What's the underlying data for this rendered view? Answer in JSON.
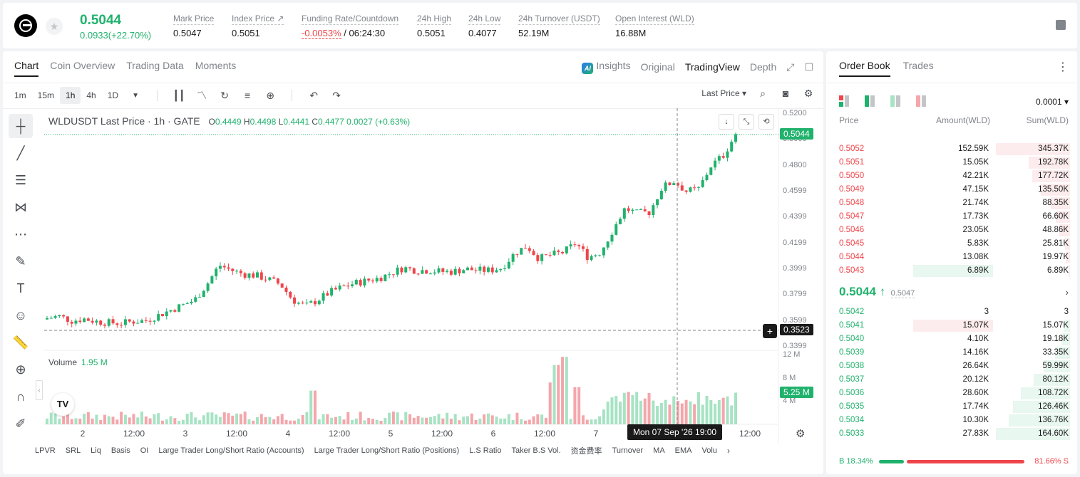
{
  "header": {
    "last_price": "0.5044",
    "change": "0.0933(+22.70%)",
    "stats": [
      {
        "label": "Mark Price",
        "value": "0.5047",
        "x": 239
      },
      {
        "label": "Index Price ↗",
        "value": "0.5051",
        "x": 321
      },
      {
        "label": "Funding Rate/Countdown",
        "value_red": "-0.0053%",
        "value": " / 06:24:30",
        "x": 419
      },
      {
        "label": "24h High",
        "value": "0.5051",
        "x": 581
      },
      {
        "label": "24h Low",
        "value": "0.4077",
        "x": 653
      },
      {
        "label": "24h Turnover (USDT)",
        "value": "52.19M",
        "x": 723
      },
      {
        "label": "Open Interest (WLD)",
        "value": "16.88M",
        "x": 859
      }
    ]
  },
  "chart_tabs": [
    "Chart",
    "Coin Overview",
    "Trading Data",
    "Moments"
  ],
  "view_tabs": {
    "ai": "AI",
    "insights": "Insights",
    "original": "Original",
    "tradingview": "TradingView",
    "depth": "Depth"
  },
  "timeframes": [
    "1m",
    "15m",
    "1h",
    "4h",
    "1D"
  ],
  "toolbar_right": {
    "price_type": "Last Price"
  },
  "legend": {
    "title": "WLDUSDT Last Price · 1h · GATE",
    "o": "0.4449",
    "h": "0.4498",
    "l": "0.4441",
    "c": "0.4477",
    "chg": "0.0027 (+0.63%)"
  },
  "volume_legend": {
    "label": "Volume",
    "value": "1.95 M"
  },
  "y_axis_labels": [
    "0.5200",
    "0.5000",
    "0.4800",
    "0.4599",
    "0.4399",
    "0.4199",
    "0.3999",
    "0.3799",
    "0.3599",
    "0.3399"
  ],
  "vol_axis_labels": [
    "12 M",
    "8 M",
    "4 M"
  ],
  "price_tag": "0.5044",
  "cursor_tag": "0.3523",
  "vol_tag": "5.25 M",
  "x_axis_labels": [
    "2",
    "12:00",
    "3",
    "12:00",
    "4",
    "12:00",
    "5",
    "12:00",
    "6",
    "12:00",
    "7",
    "12:00"
  ],
  "time_cursor": "Mon 07 Sep '26   19:00",
  "tv_logo": "TV",
  "indicators": [
    "LPVR",
    "SRL",
    "Liq",
    "Basis",
    "OI",
    "Large Trader Long/Short Ratio (Accounts)",
    "Large Trader Long/Short Ratio (Positions)",
    "L.S Ratio",
    "Taker B.S Vol.",
    "资金费率",
    "Turnover",
    "MA",
    "EMA",
    "Volu"
  ],
  "orderbook": {
    "tabs": [
      "Order Book",
      "Trades"
    ],
    "precision": "0.0001 ▾",
    "headers": {
      "price": "Price",
      "amount": "Amount(WLD)",
      "sum": "Sum(WLD)"
    },
    "asks": [
      {
        "price": "0.5052",
        "amount": "152.59K",
        "sum": "345.37K",
        "depth": 1.0
      },
      {
        "price": "0.5051",
        "amount": "15.05K",
        "sum": "192.78K",
        "depth": 0.56
      },
      {
        "price": "0.5050",
        "amount": "42.21K",
        "sum": "177.72K",
        "depth": 0.51
      },
      {
        "price": "0.5049",
        "amount": "47.15K",
        "sum": "135.50K",
        "depth": 0.39
      },
      {
        "price": "0.5048",
        "amount": "21.74K",
        "sum": "88.35K",
        "depth": 0.26
      },
      {
        "price": "0.5047",
        "amount": "17.73K",
        "sum": "66.60K",
        "depth": 0.19
      },
      {
        "price": "0.5046",
        "amount": "23.05K",
        "sum": "48.86K",
        "depth": 0.14
      },
      {
        "price": "0.5045",
        "amount": "5.83K",
        "sum": "25.81K",
        "depth": 0.07
      },
      {
        "price": "0.5044",
        "amount": "13.08K",
        "sum": "19.97K",
        "depth": 0.06
      },
      {
        "price": "0.5043",
        "amount": "6.89K",
        "sum": "6.89K",
        "depth": 0.02,
        "hl": true
      }
    ],
    "mid_price": "0.5044 ↑",
    "mid_mark": "0.5047",
    "bids": [
      {
        "price": "0.5042",
        "amount": "3",
        "sum": "3",
        "depth": 0.0
      },
      {
        "price": "0.5041",
        "amount": "15.07K",
        "sum": "15.07K",
        "depth": 0.09,
        "hl": true
      },
      {
        "price": "0.5040",
        "amount": "4.10K",
        "sum": "19.18K",
        "depth": 0.12
      },
      {
        "price": "0.5039",
        "amount": "14.16K",
        "sum": "33.35K",
        "depth": 0.2
      },
      {
        "price": "0.5038",
        "amount": "26.64K",
        "sum": "59.99K",
        "depth": 0.36
      },
      {
        "price": "0.5037",
        "amount": "20.12K",
        "sum": "80.12K",
        "depth": 0.49
      },
      {
        "price": "0.5036",
        "amount": "28.60K",
        "sum": "108.72K",
        "depth": 0.66
      },
      {
        "price": "0.5035",
        "amount": "17.74K",
        "sum": "126.46K",
        "depth": 0.77
      },
      {
        "price": "0.5034",
        "amount": "10.30K",
        "sum": "136.76K",
        "depth": 0.83
      },
      {
        "price": "0.5033",
        "amount": "27.83K",
        "sum": "164.60K",
        "depth": 1.0
      }
    ],
    "ratio": {
      "buy_label": "B 18.34%",
      "sell_label": "81.66% S",
      "buy": 18.34,
      "sell": 81.66
    }
  },
  "colors": {
    "up": "#20b26c",
    "down": "#ef454a",
    "up_vol": "#a6e3c3",
    "down_vol": "#f4a6ab"
  },
  "chart_data": {
    "type": "candlestick",
    "title": "WLDUSDT Last Price · 1h · GATE",
    "ylim": [
      0.3399,
      0.52
    ],
    "volume_ylim": [
      0,
      12
    ],
    "volume_unit": "M",
    "x_ticks": [
      "2",
      "12:00",
      "3",
      "12:00",
      "4",
      "12:00",
      "5",
      "12:00",
      "6",
      "12:00",
      "7",
      "12:00"
    ],
    "close_path": [
      [
        0,
        0.362
      ],
      [
        5,
        0.3635
      ],
      [
        10,
        0.36
      ],
      [
        15,
        0.3615
      ],
      [
        20,
        0.3595
      ],
      [
        25,
        0.3585
      ],
      [
        30,
        0.358
      ],
      [
        35,
        0.3595
      ],
      [
        40,
        0.36
      ],
      [
        45,
        0.364
      ],
      [
        50,
        0.368
      ],
      [
        55,
        0.372
      ],
      [
        60,
        0.376
      ],
      [
        65,
        0.388
      ],
      [
        70,
        0.403
      ],
      [
        75,
        0.399
      ],
      [
        80,
        0.396
      ],
      [
        85,
        0.395
      ],
      [
        90,
        0.392
      ],
      [
        95,
        0.388
      ],
      [
        100,
        0.376
      ],
      [
        105,
        0.371
      ],
      [
        110,
        0.376
      ],
      [
        115,
        0.382
      ],
      [
        120,
        0.386
      ],
      [
        125,
        0.389
      ],
      [
        130,
        0.391
      ],
      [
        135,
        0.393
      ],
      [
        140,
        0.397
      ],
      [
        145,
        0.401
      ],
      [
        150,
        0.399
      ],
      [
        155,
        0.399
      ],
      [
        160,
        0.398
      ],
      [
        165,
        0.398
      ],
      [
        170,
        0.4
      ],
      [
        175,
        0.399
      ],
      [
        180,
        0.399
      ],
      [
        185,
        0.401
      ],
      [
        190,
        0.412
      ],
      [
        195,
        0.418
      ],
      [
        200,
        0.408
      ],
      [
        205,
        0.411
      ],
      [
        210,
        0.413
      ],
      [
        215,
        0.42
      ],
      [
        220,
        0.409
      ],
      [
        225,
        0.413
      ],
      [
        230,
        0.43
      ],
      [
        235,
        0.447
      ],
      [
        240,
        0.443
      ],
      [
        245,
        0.444
      ],
      [
        250,
        0.463
      ],
      [
        255,
        0.468
      ],
      [
        260,
        0.46
      ],
      [
        265,
        0.462
      ],
      [
        270,
        0.48
      ],
      [
        275,
        0.488
      ],
      [
        280,
        0.5044
      ]
    ],
    "candle_count": 168,
    "volume_peak_at": [
      [
        108,
        5.8
      ],
      [
        206,
        7.2
      ],
      [
        208,
        10.2
      ],
      [
        210,
        11.6
      ],
      [
        215,
        6.4
      ]
    ]
  }
}
